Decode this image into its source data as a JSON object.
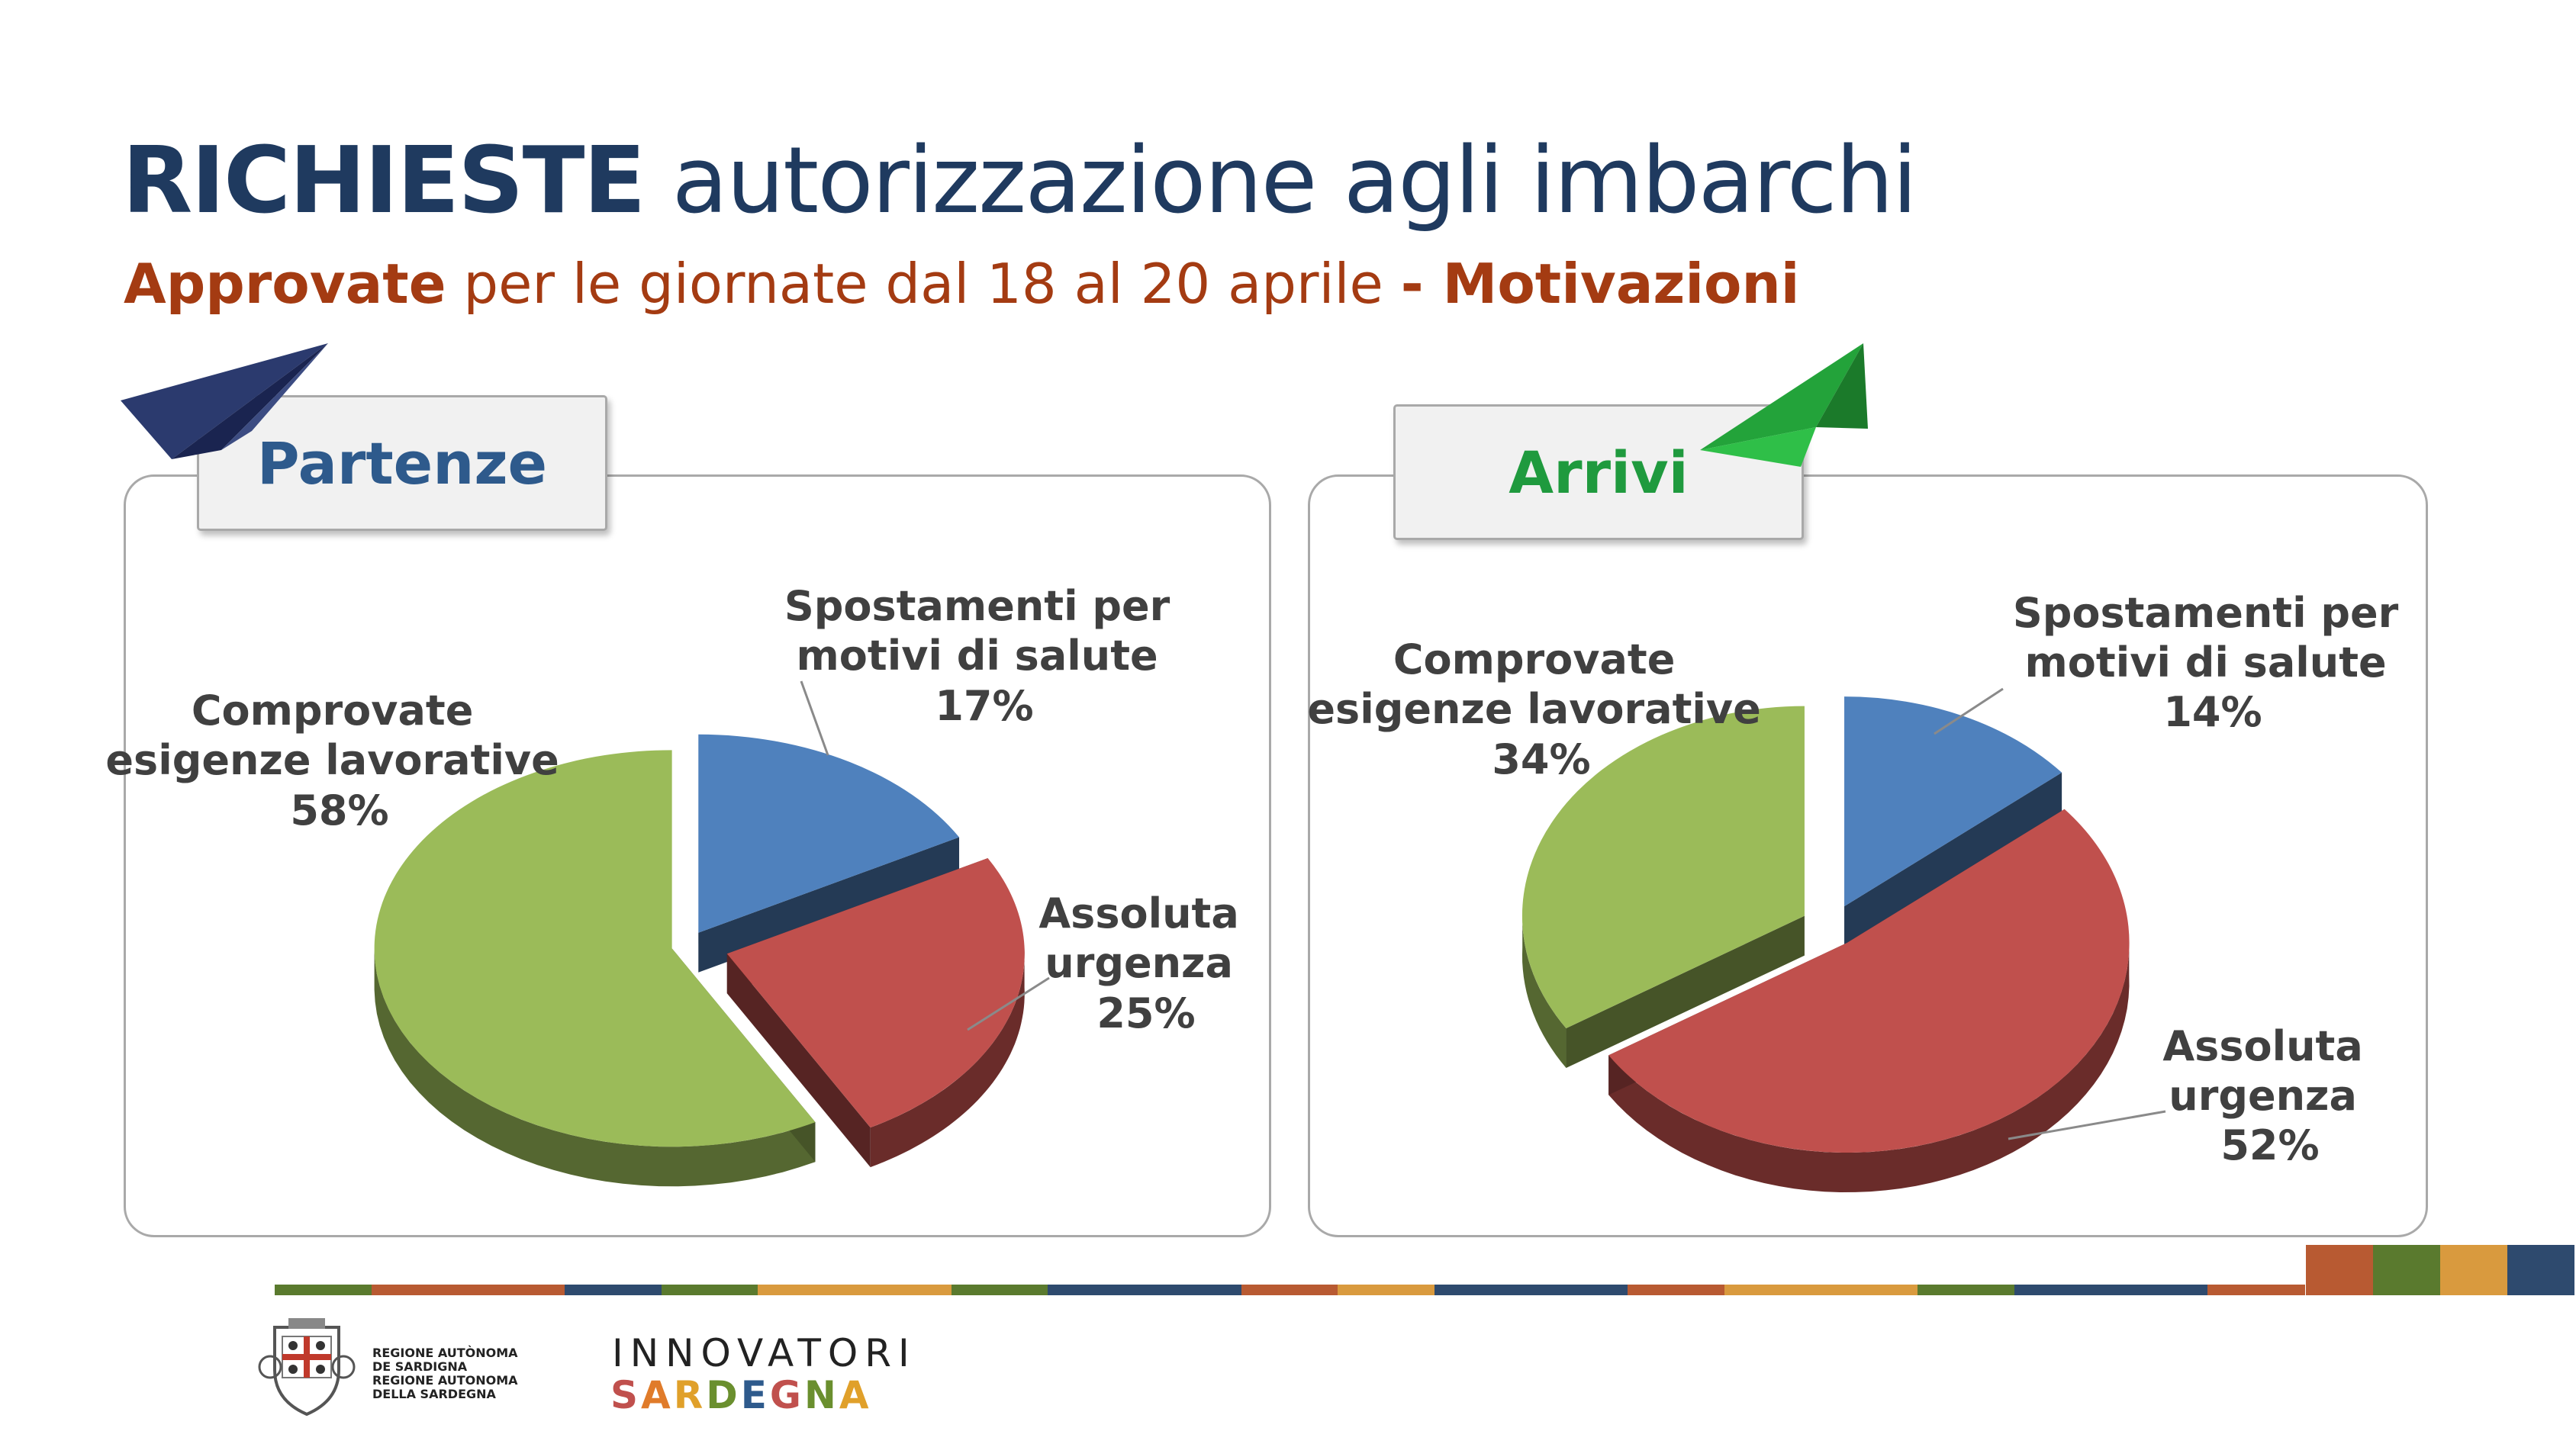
{
  "title": {
    "bold": "RICHIESTE",
    "rest": " autorizzazione agli imbarchi"
  },
  "subtitle": {
    "bold1": "Approvate",
    "middle": " per le giornate dal 18 al 20 aprile ",
    "bold2": "- Motivazioni"
  },
  "colors": {
    "title": "#1f3a5f",
    "subtitle": "#a43b12",
    "partenze_tab": "#2e5a8c",
    "arrivi_tab": "#1f9a3e",
    "blue": "#4f81bd",
    "red": "#c0504d",
    "green": "#9bbb59"
  },
  "chart_data": [
    {
      "type": "pie",
      "title": "Partenze",
      "slices": [
        {
          "label": "Spostamenti per motivi di salute",
          "value": 17,
          "display": "17%",
          "color": "#4f81bd"
        },
        {
          "label": "Assoluta urgenza",
          "value": 25,
          "display": "25%",
          "color": "#c0504d"
        },
        {
          "label": "Comprovate esigenze lavorative",
          "value": 58,
          "display": "58%",
          "color": "#9bbb59"
        }
      ]
    },
    {
      "type": "pie",
      "title": "Arrivi",
      "slices": [
        {
          "label": "Spostamenti per motivi di salute",
          "value": 14,
          "display": "14%",
          "color": "#4f81bd"
        },
        {
          "label": "Assoluta urgenza",
          "value": 52,
          "display": "52%",
          "color": "#c0504d"
        },
        {
          "label": "Comprovate esigenze lavorative",
          "value": 34,
          "display": "34%",
          "color": "#9bbb59"
        }
      ]
    }
  ],
  "labels": {
    "partenze": {
      "salute": [
        "Spostamenti per",
        "motivi di salute",
        "17%"
      ],
      "urgenza": [
        "Assoluta",
        "urgenza",
        "25%"
      ],
      "lavoro": [
        "Comprovate",
        "esigenze lavorative",
        "58%"
      ]
    },
    "arrivi": {
      "salute": [
        "Spostamenti per",
        "motivi di salute",
        "14%"
      ],
      "urgenza": [
        "Assoluta",
        "urgenza",
        "52%"
      ],
      "lavoro": [
        "Comprovate",
        "esigenze lavorative",
        "34%"
      ]
    }
  },
  "footer": {
    "region_lines": [
      "REGIONE AUTÒNOMA",
      "DE SARDIGNA",
      "REGIONE AUTONOMA",
      "DELLA SARDEGNA"
    ],
    "innovatori": "INNOVATORI",
    "sardegna_letters": [
      "S",
      "A",
      "R",
      "D",
      "E",
      "G",
      "N",
      "A"
    ],
    "sardegna_colors": [
      "#c0504d",
      "#e07b2a",
      "#e0a02a",
      "#6a8f2e",
      "#2e5a8c",
      "#c0504d",
      "#6a8f2e",
      "#e0a02a"
    ]
  },
  "stripe_colors": [
    "#5a7a2e",
    "#b85a32",
    "#b85a32",
    "#2e4a6e",
    "#5a7a2e",
    "#d99a3e",
    "#d99a3e",
    "#5a7a2e",
    "#2e4a6e",
    "#2e4a6e",
    "#b85a32",
    "#d99a3e",
    "#2e4a6e",
    "#2e4a6e",
    "#b85a32",
    "#d99a3e",
    "#d99a3e",
    "#5a7a2e",
    "#2e4a6e",
    "#2e4a6e",
    "#b85a32"
  ],
  "corner_colors": [
    "#b85a32",
    "#5a7a2e",
    "#d99a3e",
    "#2e4a6e"
  ]
}
